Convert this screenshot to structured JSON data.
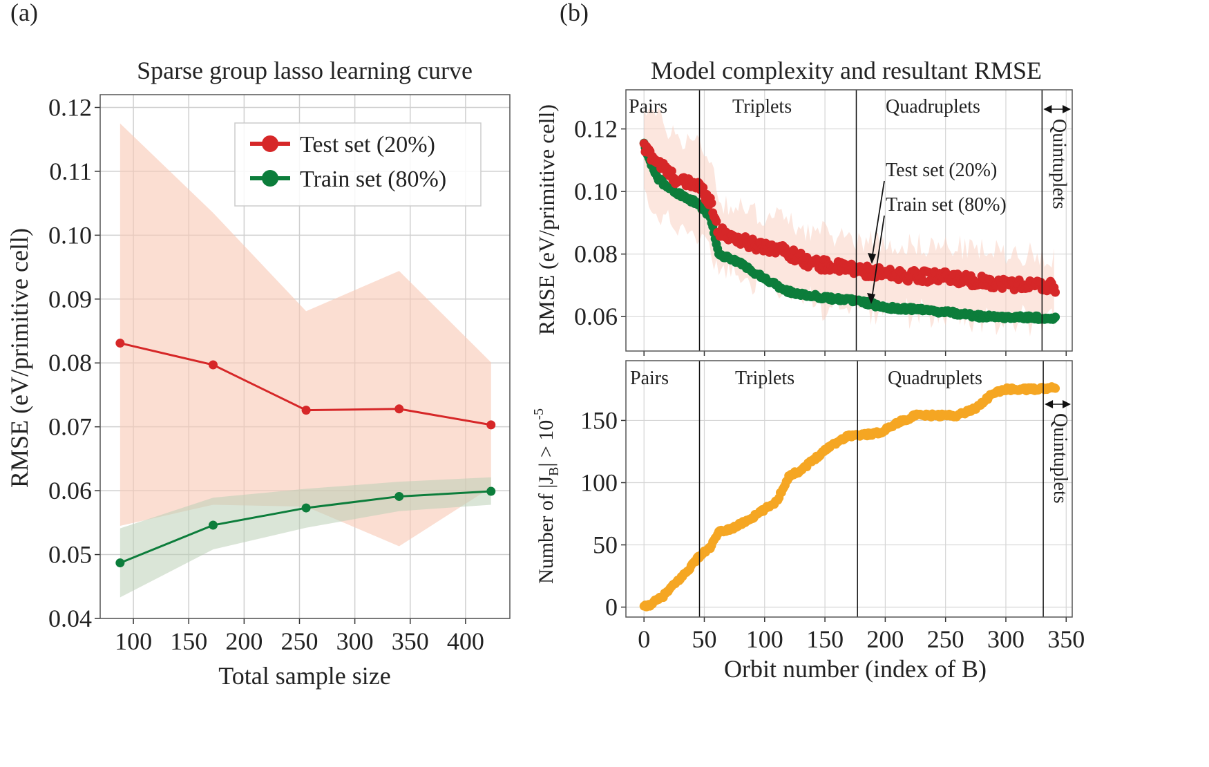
{
  "figure": {
    "panel_a_tag": "(a)",
    "panel_b_tag": "(b)"
  },
  "chart_data": [
    {
      "id": "a",
      "type": "line",
      "title": "Sparse group lasso learning curve",
      "xlabel": "Total sample size",
      "ylabel": "RMSE (eV/primitive cell)",
      "xlim": [
        70,
        440
      ],
      "ylim": [
        0.04,
        0.122
      ],
      "xticks": [
        100,
        150,
        200,
        250,
        300,
        350,
        400
      ],
      "yticks": [
        0.04,
        0.05,
        0.06,
        0.07,
        0.08,
        0.09,
        0.1,
        0.11,
        0.12
      ],
      "ytick_labels": [
        "0.04",
        "0.05",
        "0.06",
        "0.07",
        "0.08",
        "0.09",
        "0.10",
        "0.11",
        "0.12"
      ],
      "grid": true,
      "legend_position": "top-right",
      "x": [
        88,
        172,
        256,
        340,
        423
      ],
      "series": [
        {
          "name": "Test set (20%)",
          "color": "#d62728",
          "values": [
            0.0831,
            0.0797,
            0.0726,
            0.0728,
            0.0703
          ],
          "band_upper": [
            0.1175,
            0.1035,
            0.0881,
            0.0944,
            0.0801
          ],
          "band_lower": [
            0.0545,
            0.0578,
            0.0575,
            0.0513,
            0.0605
          ],
          "band_color": "#f9c8b4"
        },
        {
          "name": "Train set (80%)",
          "color": "#0c7d3b",
          "values": [
            0.0487,
            0.0546,
            0.0573,
            0.0591,
            0.0599
          ],
          "band_upper": [
            0.0541,
            0.0589,
            0.0603,
            0.0614,
            0.0621
          ],
          "band_lower": [
            0.0433,
            0.0508,
            0.0542,
            0.0568,
            0.0578
          ],
          "band_color": "#bccfb7"
        }
      ]
    },
    {
      "id": "b-top",
      "type": "scatter",
      "title": "Model complexity and resultant RMSE",
      "xlabel": "",
      "ylabel": "RMSE (eV/primitive cell)",
      "xlim": [
        -15,
        355
      ],
      "ylim": [
        0.049,
        0.1325
      ],
      "xticks": [
        0,
        50,
        100,
        150,
        200,
        250,
        300,
        350
      ],
      "yticks": [
        0.06,
        0.08,
        0.1,
        0.12
      ],
      "ytick_labels": [
        "0.06",
        "0.08",
        "0.10",
        "0.12"
      ],
      "grid": true,
      "region_boundaries": [
        46,
        176,
        330
      ],
      "region_labels": [
        "Pairs",
        "Triplets",
        "Quadruplets",
        "Quintuplets"
      ],
      "annotations": [
        "Test set (20%)",
        "Train set (80%)"
      ],
      "x_range": [
        0,
        341
      ],
      "series": [
        {
          "name": "Test set (20%)",
          "color": "#d62728",
          "anchors": [
            [
              0,
              0.114
            ],
            [
              10,
              0.11
            ],
            [
              20,
              0.106
            ],
            [
              30,
              0.103
            ],
            [
              45,
              0.102
            ],
            [
              55,
              0.097
            ],
            [
              62,
              0.087
            ],
            [
              70,
              0.086
            ],
            [
              90,
              0.083
            ],
            [
              110,
              0.082
            ],
            [
              140,
              0.077
            ],
            [
              176,
              0.075
            ],
            [
              200,
              0.0735
            ],
            [
              250,
              0.0725
            ],
            [
              300,
              0.0705
            ],
            [
              341,
              0.0695
            ]
          ],
          "noise": 0.0018
        },
        {
          "name": "Train set (80%)",
          "color": "#0c7d3b",
          "anchors": [
            [
              0,
              0.115
            ],
            [
              10,
              0.105
            ],
            [
              20,
              0.101
            ],
            [
              30,
              0.099
            ],
            [
              45,
              0.096
            ],
            [
              55,
              0.092
            ],
            [
              62,
              0.08
            ],
            [
              80,
              0.077
            ],
            [
              100,
              0.072
            ],
            [
              120,
              0.068
            ],
            [
              150,
              0.066
            ],
            [
              176,
              0.065
            ],
            [
              200,
              0.063
            ],
            [
              250,
              0.0615
            ],
            [
              280,
              0.06
            ],
            [
              341,
              0.0595
            ]
          ],
          "noise": 0.0006
        }
      ],
      "band_color": "#f9d2c2"
    },
    {
      "id": "b-bottom",
      "type": "scatter",
      "title": "",
      "xlabel": "Orbit number (index of B)",
      "ylabel_parts": [
        "Number of |J",
        "B",
        "| > 10",
        "-5"
      ],
      "xlim": [
        -15,
        355
      ],
      "ylim": [
        -8,
        198
      ],
      "xticks": [
        0,
        50,
        100,
        150,
        200,
        250,
        300,
        350
      ],
      "yticks": [
        0,
        50,
        100,
        150
      ],
      "ytick_labels": [
        "0",
        "50",
        "100",
        "150"
      ],
      "grid": true,
      "region_boundaries": [
        46,
        177,
        331
      ],
      "region_labels": [
        "Pairs",
        "Triplets",
        "Quadruplets",
        "Quintuplets"
      ],
      "series": [
        {
          "name": "Number of |J_B| > 10^-5",
          "color": "#f5a623",
          "anchors": [
            [
              0,
              0
            ],
            [
              5,
              2
            ],
            [
              15,
              8
            ],
            [
              25,
              18
            ],
            [
              35,
              28
            ],
            [
              45,
              40
            ],
            [
              55,
              48
            ],
            [
              62,
              60
            ],
            [
              75,
              64
            ],
            [
              90,
              72
            ],
            [
              110,
              85
            ],
            [
              120,
              105
            ],
            [
              130,
              110
            ],
            [
              140,
              118
            ],
            [
              155,
              130
            ],
            [
              170,
              138
            ],
            [
              178,
              138
            ],
            [
              195,
              140
            ],
            [
              210,
              148
            ],
            [
              225,
              154
            ],
            [
              240,
              154
            ],
            [
              260,
              154
            ],
            [
              275,
              160
            ],
            [
              290,
              172
            ],
            [
              300,
              175
            ],
            [
              320,
              175
            ],
            [
              341,
              176
            ]
          ]
        }
      ]
    }
  ]
}
